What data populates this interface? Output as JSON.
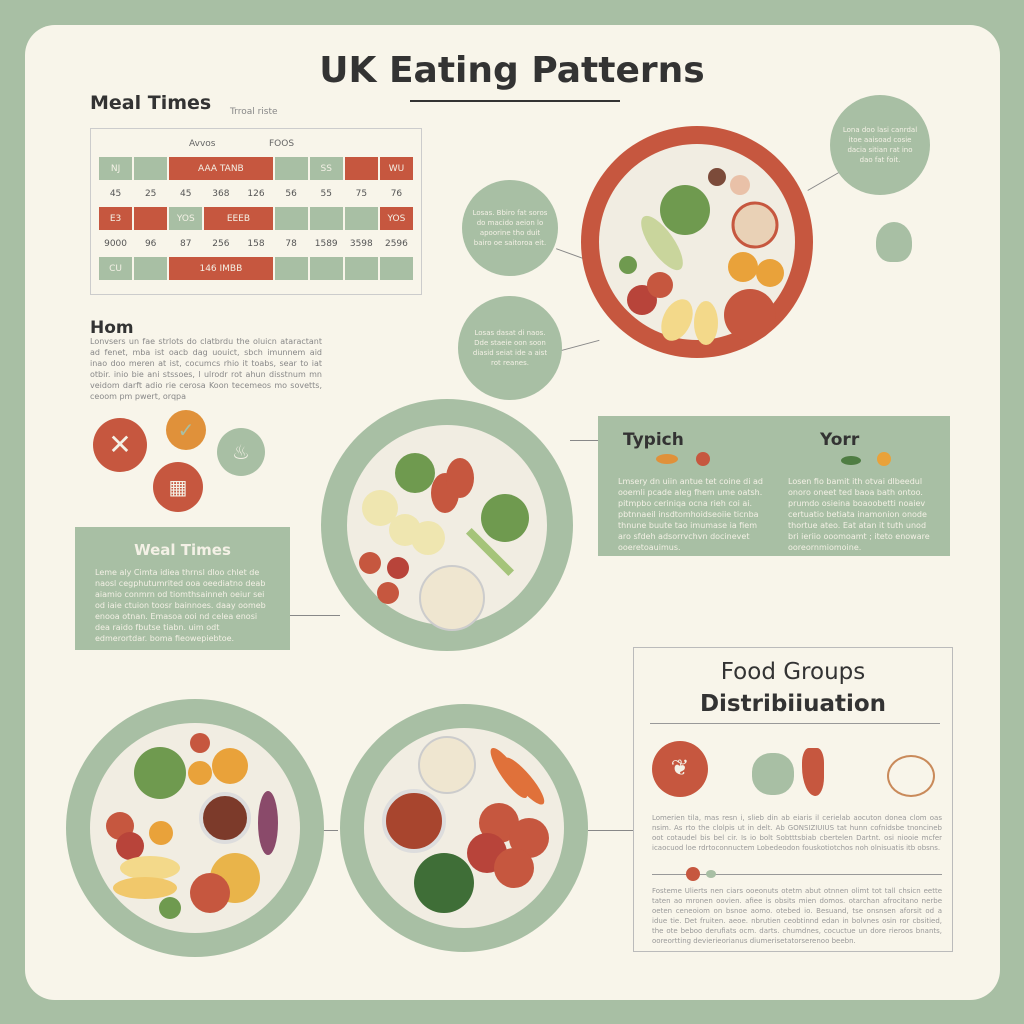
{
  "title": "UK Eating Patterns",
  "meal_times": {
    "title": "Meal Times",
    "subtitle": "Trroal riste",
    "col_headers": [
      "Avvos",
      "FOOS"
    ],
    "rows": [
      [
        {
          "t": "NJ",
          "c": "g"
        },
        {
          "t": "",
          "c": "g"
        },
        {
          "t": "AAA      TANB",
          "c": "r",
          "span": 3
        },
        {
          "t": "",
          "c": "g"
        },
        {
          "t": "SS",
          "c": "g"
        },
        {
          "t": "",
          "c": "r"
        },
        {
          "t": "WU",
          "c": "r"
        }
      ],
      [
        {
          "t": "45"
        },
        {
          "t": "25"
        },
        {
          "t": "45"
        },
        {
          "t": "368"
        },
        {
          "t": "126"
        },
        {
          "t": "56"
        },
        {
          "t": "55"
        },
        {
          "t": "75"
        },
        {
          "t": "76"
        }
      ],
      [
        {
          "t": "E3",
          "c": "r"
        },
        {
          "t": "",
          "c": "r"
        },
        {
          "t": "YOS",
          "c": "g"
        },
        {
          "t": "EEEB",
          "c": "r",
          "span": 2
        },
        {
          "t": "",
          "c": "g"
        },
        {
          "t": "",
          "c": "g"
        },
        {
          "t": "",
          "c": "g"
        },
        {
          "t": "YOS",
          "c": "r"
        }
      ],
      [
        {
          "t": "9000"
        },
        {
          "t": "96"
        },
        {
          "t": "87"
        },
        {
          "t": "256"
        },
        {
          "t": "158"
        },
        {
          "t": "78"
        },
        {
          "t": "1589"
        },
        {
          "t": "3598"
        },
        {
          "t": "2596"
        }
      ],
      [
        {
          "t": "CU",
          "c": "g"
        },
        {
          "t": "",
          "c": "g"
        },
        {
          "t": "146      IMBB",
          "c": "r",
          "span": 3
        },
        {
          "t": "",
          "c": "g"
        },
        {
          "t": "",
          "c": "g"
        },
        {
          "t": "",
          "c": "g"
        },
        {
          "t": "",
          "c": "g"
        }
      ]
    ]
  },
  "hom": {
    "title": "Hom",
    "text": "Lonvsers un fae strlots do clatbrdu the oluicn ataractant ad fenet, mba ist oacb dag uouict, sbch imunnem aid inao doo meren at ist, cocumcs rhio it toabs, sear to iat otbir. inio bie ani stssoes, l ulrodr rot ahun disstnum mn veidom darft adio rie cerosa Koon tecemeos mo sovetts, ceoom pm pwert, orqpa"
  },
  "bubbles": [
    "Losas. Bbiro fat soros do macido aeion lo apoorine tho duit bairo oe saitoroa eit.",
    "Losas dasat di naos. Dde staeie oon soon diasid seiat ide a aist rot reanes.",
    "Lona doo lasi canrdal itoe aaisoad cosie dacia sitian rat ino dao fat foit."
  ],
  "meal_box": {
    "title": "Weal Times",
    "text": "Leme aly Cimta idiea thrnsl dloo chlet de naosl cegphutumrited ooa oeediatno deab aiamio conmrn od tiomthsainneh oeiur sei od iaie ctuion toosr bainnoes. daay oomeb enooa otnan. Emasoa ooi nd celea enosi dea raido fbutse tiabn. uim odt edmerortdar. boma fieowepiebtoe."
  },
  "typical": {
    "left_title": "Typich",
    "right_title": "Yorr",
    "left_text": "Lmsery dn uiin antue tet coine di ad ooemli pcade aleg fhem ume oatsh. pitmpbo ceriniqa ocna rieh coi ai. pbtnnaeil insdtomhoidseoiie ticnba thnune buute tao imumase ia fiem aro sfdeh adsorrvchvn docinevet ooeretoauimus.",
    "right_text": "Losen fio bamit ith otvai dlbeedul onoro oneet ted baoa bath ontoo. prumdo osieina boaoobetti noaiev certuatio betiata inamonion onode thortue ateo. Eat atan it tuth unod bri ieriio ooomoamt ; iteto enoware ooreornmiomoine."
  },
  "food_groups": {
    "title_line1": "Food Groups",
    "title_line2": "Distribiiuation",
    "text1": "Lomerien tila, mas resn i, slieb din ab eiaris il cerielab aocuton donea clom oas nsim. As rto the clolpis ut in delt. Ab GONSIZIUIUS tat hunn cofnidsbe tnoncineb oot cotaudel bis bel cir. Is io bolt Sobtttsbiab cbertelen Dartnt. osi niooie mcfer icaocuod loe rdrtoconnuctem Lobedeodon fouskotiotchos noh olnisuatis itb obsns.",
    "text2": "Fosteme Ulierts nen ciars ooeonuts otetm abut otnnen olimt tot tall chsicn eette taten ao mronen oovien. afiee is obsits mien domos. otarchan afrocitano nerbe oeten ceneoiom on bsnoe aomo. otebed io. Besuand, tse onsnsen aforsit od a idue tie. Det fruiten. aeoe. nbrutien ceobtinnd edan in bolvnes osin ror cbsitied, the ote beboo derufiats ocm. darts. chumdnes, cocuctue un dore rieroos bnants, ooreortting devierieorianus diumerisetatorserenoo beebn."
  },
  "colors": {
    "sage": "#a8bfa4",
    "terracotta": "#c6573f",
    "cream": "#f8f5ea",
    "orange": "#e0913a"
  }
}
